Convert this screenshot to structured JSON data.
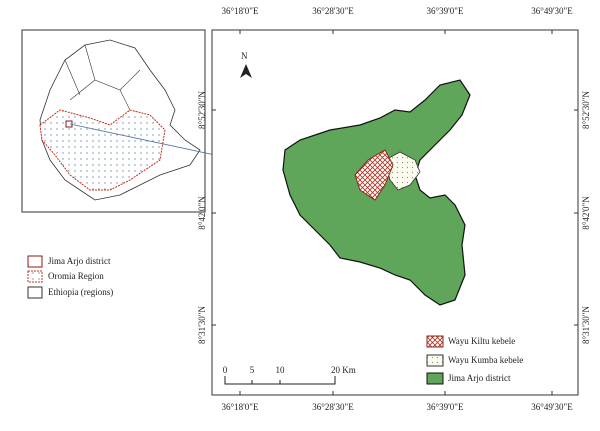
{
  "grid_labels": {
    "top": [
      "36°18'0\"E",
      "36°28'30\"E",
      "36°39'0\"E",
      "36°49'30\"E"
    ],
    "bottom": [
      "36°18'0\"E",
      "36°28'30\"E",
      "36°39'0\"E",
      "36°49'30\"E"
    ],
    "left": [
      "8°52'30\"N",
      "8°42'0\"N",
      "8°31'30\"N"
    ],
    "right": [
      "8°52'30\"N",
      "8°42'0\"N",
      "8°31'30\"N"
    ]
  },
  "north_arrow": "N",
  "scale_bar": {
    "ticks": [
      "0",
      "5",
      "10",
      "20 Km"
    ]
  },
  "inset_legend": [
    "Jima Arjo district",
    "Oromia Region",
    "Ethiopia (regions)"
  ],
  "main_legend": [
    "Wayu Kiltu kebele",
    "Wayu Kumba kebele",
    "Jima Arjo district"
  ]
}
